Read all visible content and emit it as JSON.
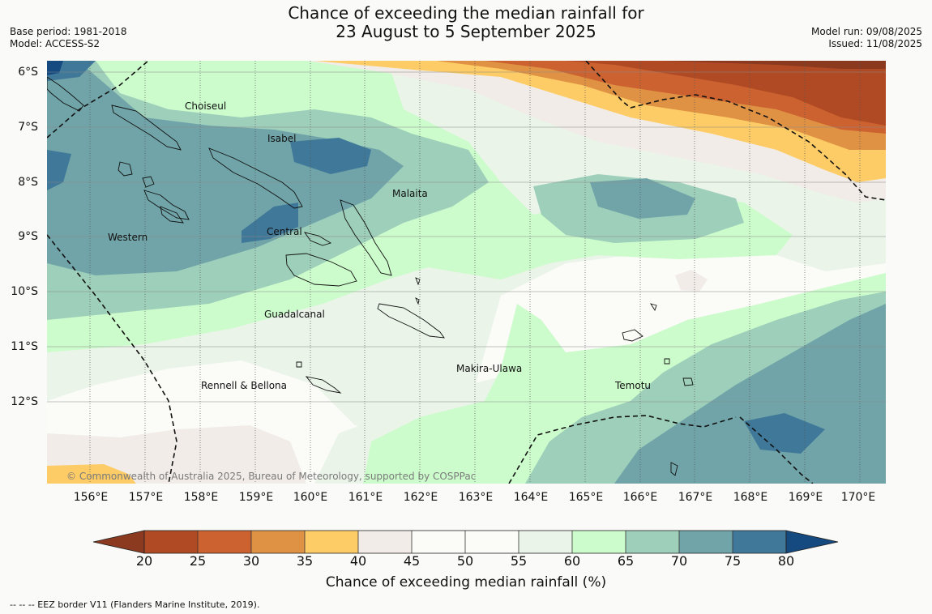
{
  "header": {
    "title_line1": "Chance of exceeding the median rainfall for",
    "title_line2": "23 August to 5 September 2025",
    "base_period": "Base period: 1981-2018",
    "model": "Model: ACCESS-S2",
    "model_run": "Model run: 09/08/2025",
    "issued": "Issued: 11/08/2025"
  },
  "map": {
    "lat_labels": [
      "6°S",
      "7°S",
      "8°S",
      "9°S",
      "10°S",
      "11°S",
      "12°S"
    ],
    "lon_labels": [
      "156°E",
      "157°E",
      "158°E",
      "159°E",
      "160°E",
      "161°E",
      "162°E",
      "163°E",
      "164°E",
      "165°E",
      "166°E",
      "167°E",
      "168°E",
      "169°E",
      "170°E"
    ],
    "regions": {
      "choiseul": "Choiseul",
      "isabel": "Isabel",
      "malaita": "Malaita",
      "western": "Western",
      "central": "Central",
      "guadalcanal": "Guadalcanal",
      "makira": "Makira-Ulawa",
      "rennell": "Rennell & Bellona",
      "temotu": "Temotu"
    },
    "copyright": "© Commonwealth of Australia 2025, Bureau of Meteorology, supported by COSPPac"
  },
  "colorbar": {
    "ticks": [
      "20",
      "25",
      "30",
      "35",
      "40",
      "45",
      "50",
      "55",
      "60",
      "65",
      "70",
      "75",
      "80"
    ],
    "label": "Chance of exceeding median rainfall (%)",
    "colors": {
      "below20": "#8c3a1f",
      "20-25": "#b04a24",
      "25-30": "#cc6230",
      "30-35": "#e09244",
      "35-40": "#fdcc66",
      "40-45": "#f1ece7",
      "45-50": "#fbfbf8",
      "50-55": "#fbfbf8",
      "55-60": "#eaf4e8",
      "60-65": "#ccfccb",
      "65-70": "#9dcfba",
      "70-75": "#70a4a8",
      "75-80": "#3f7898",
      "above80": "#144a80"
    }
  },
  "footer": {
    "eez_note": "--  --  -- EEZ border V11 (Flanders Marine Institute, 2019)."
  }
}
